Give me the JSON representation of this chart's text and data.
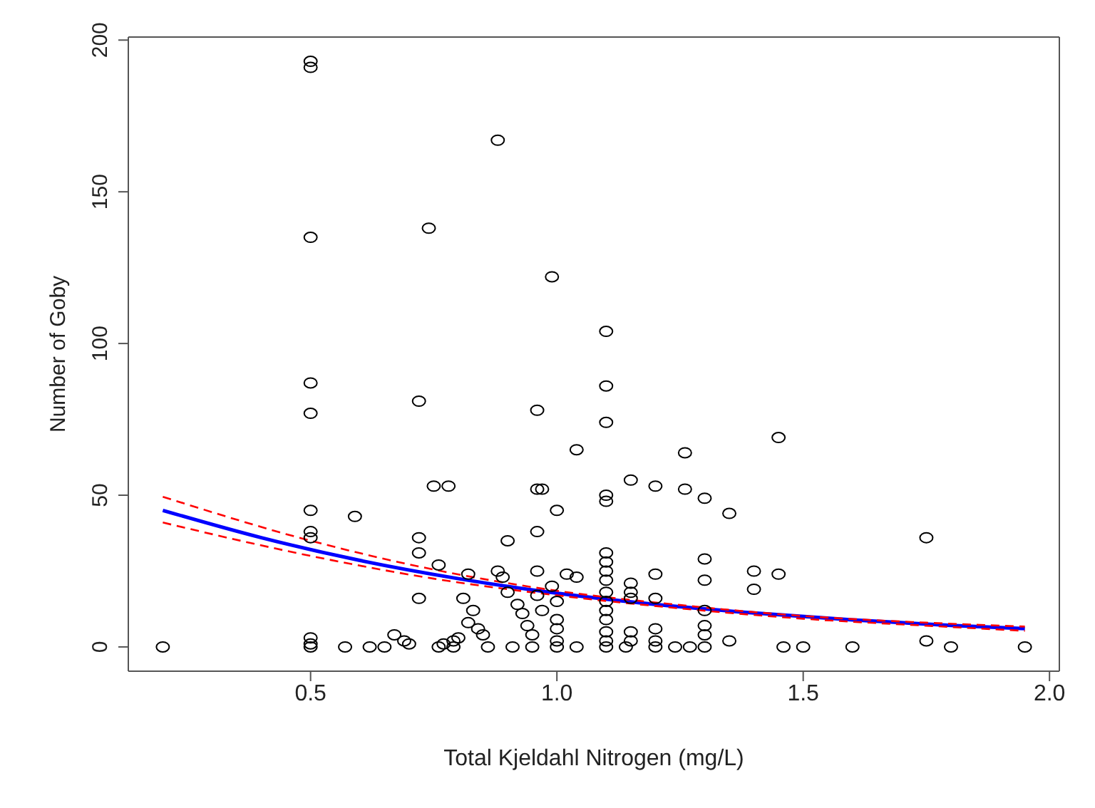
{
  "chart_data": {
    "type": "scatter",
    "xlabel": "Total Kjeldahl Nitrogen (mg/L)",
    "ylabel": "Number of Goby",
    "xlim": [
      0.13,
      2.02
    ],
    "xticks": [
      {
        "value": 0.5,
        "label": "0.5"
      },
      {
        "value": 1,
        "label": "1.0"
      },
      {
        "value": 1.5,
        "label": "1.5"
      },
      {
        "value": 2,
        "label": "2.0"
      }
    ],
    "ylim": [
      -8,
      201
    ],
    "yticks": [
      0,
      50,
      100,
      150,
      200
    ],
    "grid": false,
    "legend": false,
    "series": [
      {
        "marker": "circle",
        "color": "#000000",
        "x": [
          0.2,
          0.5,
          0.5,
          0.5,
          0.5,
          0.5,
          0.5,
          0.5,
          0.5,
          0.5,
          0.5,
          0.5,
          0.59,
          0.57,
          0.62,
          0.65,
          0.67,
          0.69,
          0.7,
          0.72,
          0.72,
          0.72,
          0.72,
          0.74,
          0.75,
          0.78,
          0.76,
          0.76,
          0.77,
          0.79,
          0.79,
          0.8,
          0.81,
          0.82,
          0.83,
          0.82,
          0.84,
          0.85,
          0.86,
          0.88,
          0.88,
          0.89,
          0.9,
          0.9,
          0.91,
          0.92,
          0.93,
          0.94,
          0.95,
          0.95,
          0.96,
          0.96,
          0.97,
          0.96,
          0.96,
          0.96,
          0.97,
          0.99,
          1.0,
          0.99,
          1.0,
          1.0,
          1.0,
          1.0,
          1.0,
          1.02,
          1.04,
          1.04,
          1.04,
          1.1,
          1.1,
          1.1,
          1.1,
          1.1,
          1.1,
          1.1,
          1.1,
          1.1,
          1.1,
          1.1,
          1.1,
          1.1,
          1.1,
          1.1,
          1.1,
          1.15,
          1.15,
          1.15,
          1.15,
          1.15,
          1.15,
          1.14,
          1.2,
          1.2,
          1.2,
          1.2,
          1.2,
          1.2,
          1.26,
          1.26,
          1.24,
          1.27,
          1.3,
          1.3,
          1.3,
          1.3,
          1.3,
          1.3,
          1.3,
          1.35,
          1.35,
          1.4,
          1.4,
          1.45,
          1.45,
          1.46,
          1.5,
          1.6,
          1.75,
          1.75,
          1.8,
          1.95
        ],
        "values": [
          0,
          193,
          191,
          135,
          87,
          77,
          45,
          38,
          36,
          3,
          1,
          0,
          43,
          0,
          0,
          0,
          4,
          2,
          1,
          81,
          36,
          31,
          16,
          138,
          53,
          53,
          27,
          0,
          1,
          2,
          0,
          3,
          16,
          24,
          12,
          8,
          6,
          4,
          0,
          167,
          25,
          23,
          18,
          35,
          0,
          14,
          11,
          7,
          4,
          0,
          78,
          52,
          52,
          38,
          25,
          17,
          12,
          122,
          45,
          20,
          15,
          9,
          6,
          2,
          0,
          24,
          23,
          65,
          0,
          104,
          86,
          74,
          50,
          48,
          31,
          28,
          25,
          22,
          18,
          15,
          12,
          9,
          5,
          2,
          0,
          55,
          21,
          18,
          16,
          5,
          2,
          0,
          53,
          24,
          16,
          6,
          2,
          0,
          64,
          52,
          0,
          0,
          49,
          29,
          22,
          12,
          7,
          4,
          0,
          44,
          2,
          25,
          19,
          69,
          24,
          0,
          0,
          0,
          36,
          2,
          0,
          0
        ]
      },
      {
        "type": "line",
        "marker": "none",
        "color": "#0000ff",
        "line_style": "solid",
        "x": [
          0.2,
          0.4,
          0.6,
          0.8,
          1.0,
          1.2,
          1.4,
          1.6,
          1.8,
          1.95
        ],
        "values": [
          45,
          36,
          28.5,
          22.5,
          17.7,
          14,
          11.2,
          8.9,
          7.1,
          6
        ]
      },
      {
        "type": "line",
        "marker": "none",
        "color": "#ff0000",
        "line_style": "dashed",
        "x": [
          0.2,
          0.5,
          0.75,
          1.0,
          1.25,
          1.5,
          1.75,
          1.95
        ],
        "values": [
          49.5,
          35,
          25.5,
          18.5,
          13.8,
          10.2,
          8,
          6.7
        ]
      },
      {
        "type": "line",
        "marker": "none",
        "color": "#ff0000",
        "line_style": "dashed",
        "x": [
          0.2,
          0.5,
          0.75,
          1.0,
          1.25,
          1.5,
          1.75,
          1.95
        ],
        "values": [
          41,
          30,
          22.5,
          17,
          12.7,
          9.3,
          7,
          5.3
        ]
      }
    ]
  }
}
